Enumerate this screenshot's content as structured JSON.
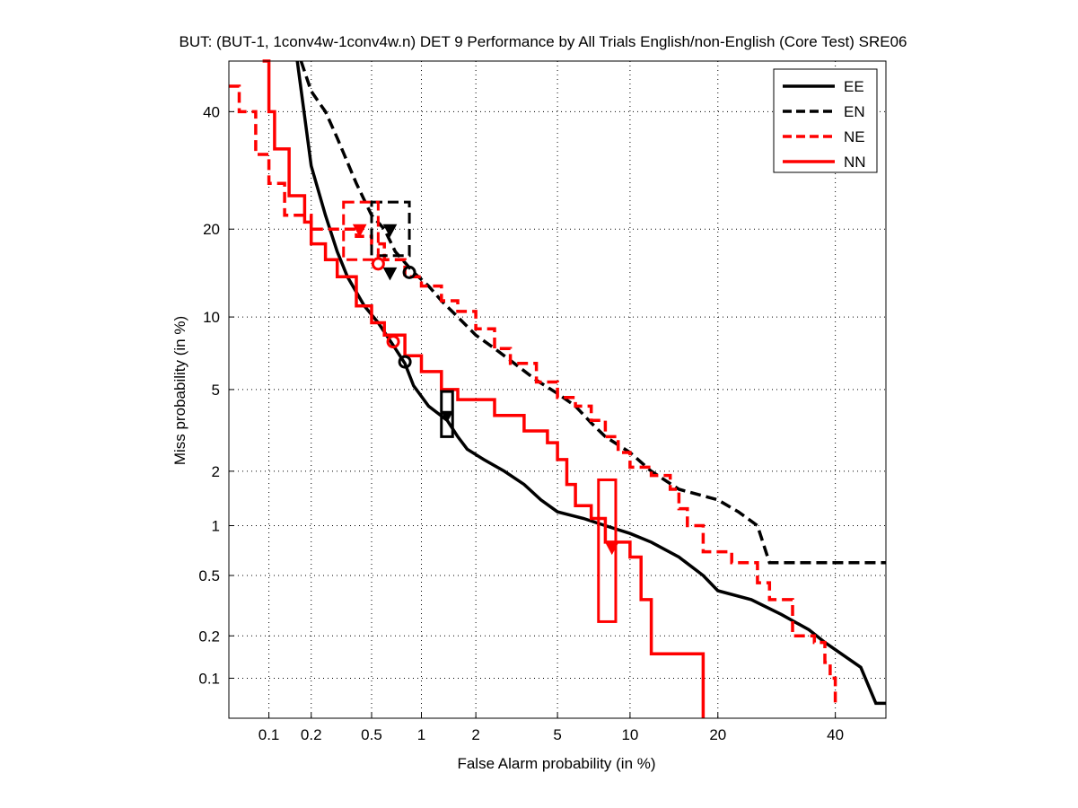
{
  "chart_data": {
    "type": "line",
    "scale": "normal-deviate (DET)",
    "title": "BUT: (BUT-1, 1conv4w-1conv4w.n) DET 9 Performance by All Trials English/non-English (Core Test) SRE06",
    "xlabel": "False Alarm probability (in %)",
    "ylabel": "Miss probability (in %)",
    "xlim": [
      0.05,
      50
    ],
    "ylim": [
      0.05,
      50
    ],
    "xticks": [
      0.1,
      0.2,
      0.5,
      1,
      2,
      5,
      10,
      20,
      40
    ],
    "xtick_labels": [
      "0.1",
      "0.2",
      "0.5",
      "1",
      "2",
      "5",
      "10",
      "20",
      "40"
    ],
    "yticks": [
      0.1,
      0.2,
      0.5,
      1,
      2,
      5,
      10,
      20,
      40
    ],
    "ytick_labels": [
      "0.1",
      "0.2",
      "0.5",
      "1",
      "2",
      "5",
      "10",
      "20",
      "40"
    ],
    "grid": true,
    "legend_position": "top-right",
    "series": [
      {
        "name": "EE",
        "color": "#000000",
        "dash": "solid",
        "shape": "smooth",
        "points": [
          [
            0.16,
            50
          ],
          [
            0.2,
            30
          ],
          [
            0.25,
            22
          ],
          [
            0.3,
            17
          ],
          [
            0.35,
            14
          ],
          [
            0.45,
            11
          ],
          [
            0.55,
            9.5
          ],
          [
            0.7,
            7.5
          ],
          [
            0.8,
            6.5
          ],
          [
            0.9,
            5.2
          ],
          [
            1.1,
            4.2
          ],
          [
            1.4,
            3.6
          ],
          [
            1.6,
            3.0
          ],
          [
            1.8,
            2.6
          ],
          [
            2.2,
            2.3
          ],
          [
            2.8,
            2.0
          ],
          [
            3.5,
            1.7
          ],
          [
            4.2,
            1.4
          ],
          [
            5,
            1.2
          ],
          [
            6.5,
            1.1
          ],
          [
            8,
            1.0
          ],
          [
            10,
            0.9
          ],
          [
            12,
            0.8
          ],
          [
            15,
            0.65
          ],
          [
            18,
            0.5
          ],
          [
            20,
            0.4
          ],
          [
            25,
            0.35
          ],
          [
            30,
            0.28
          ],
          [
            35,
            0.22
          ],
          [
            38,
            0.18
          ],
          [
            45,
            0.12
          ],
          [
            48,
            0.065
          ],
          [
            50,
            0.065
          ]
        ],
        "min_dcf": {
          "fa": 0.8,
          "miss": 6.6
        },
        "act_dcf": {
          "fa": 0.65,
          "miss": 14.5
        }
      },
      {
        "name": "EN",
        "color": "#000000",
        "dash": "dashed",
        "shape": "smooth",
        "points": [
          [
            0.17,
            50
          ],
          [
            0.2,
            44
          ],
          [
            0.25,
            40
          ],
          [
            0.3,
            35
          ],
          [
            0.4,
            27
          ],
          [
            0.5,
            22
          ],
          [
            0.6,
            20
          ],
          [
            0.7,
            17
          ],
          [
            0.9,
            14.5
          ],
          [
            1.1,
            13
          ],
          [
            1.3,
            11.5
          ],
          [
            1.6,
            10
          ],
          [
            2,
            8.5
          ],
          [
            2.5,
            7.5
          ],
          [
            3,
            6.7
          ],
          [
            4,
            5.5
          ],
          [
            5,
            4.8
          ],
          [
            6,
            4.2
          ],
          [
            7,
            3.5
          ],
          [
            8,
            3.0
          ],
          [
            10,
            2.5
          ],
          [
            12,
            2.0
          ],
          [
            15,
            1.6
          ],
          [
            20,
            1.4
          ],
          [
            23,
            1.2
          ],
          [
            26,
            1.0
          ],
          [
            28,
            0.6
          ],
          [
            50,
            0.6
          ]
        ],
        "min_dcf": {
          "fa": 0.85,
          "miss": 14.5
        },
        "act_dcf": {
          "fa": 0.65,
          "miss": 20
        },
        "confidence_box": {
          "fa": [
            0.5,
            0.85
          ],
          "miss": [
            16.5,
            24
          ]
        }
      },
      {
        "name": "NE",
        "color": "#ff0000",
        "dash": "dashed",
        "shape": "stairs",
        "points": [
          [
            0.05,
            45
          ],
          [
            0.06,
            40
          ],
          [
            0.08,
            32
          ],
          [
            0.1,
            27
          ],
          [
            0.13,
            22
          ],
          [
            0.2,
            20
          ],
          [
            0.3,
            20
          ],
          [
            0.4,
            19
          ],
          [
            0.5,
            18
          ],
          [
            0.6,
            16
          ],
          [
            0.8,
            14
          ],
          [
            1,
            13
          ],
          [
            1.3,
            11.5
          ],
          [
            1.6,
            10.5
          ],
          [
            2,
            9
          ],
          [
            2.5,
            7.5
          ],
          [
            3,
            6.5
          ],
          [
            4,
            5.4
          ],
          [
            5,
            4.6
          ],
          [
            6,
            4.2
          ],
          [
            7,
            3.6
          ],
          [
            8,
            3.0
          ],
          [
            9,
            2.5
          ],
          [
            10,
            2.1
          ],
          [
            12,
            1.9
          ],
          [
            14,
            1.6
          ],
          [
            15,
            1.25
          ],
          [
            16,
            1.0
          ],
          [
            18,
            0.7
          ],
          [
            22,
            0.6
          ],
          [
            26,
            0.45
          ],
          [
            28,
            0.35
          ],
          [
            32,
            0.2
          ],
          [
            36,
            0.18
          ],
          [
            38,
            0.13
          ],
          [
            39,
            0.1
          ],
          [
            40,
            0.065
          ]
        ],
        "min_dcf": {
          "fa": 0.55,
          "miss": 15.5
        },
        "act_dcf": {
          "fa": 0.42,
          "miss": 20
        },
        "confidence_box": {
          "fa": [
            0.33,
            0.55
          ],
          "miss": [
            16,
            24
          ]
        }
      },
      {
        "name": "NN",
        "color": "#ff0000",
        "dash": "solid",
        "shape": "stairs",
        "points": [
          [
            0.09,
            50
          ],
          [
            0.1,
            40
          ],
          [
            0.11,
            33
          ],
          [
            0.14,
            25
          ],
          [
            0.18,
            21
          ],
          [
            0.2,
            18
          ],
          [
            0.25,
            16
          ],
          [
            0.3,
            14
          ],
          [
            0.4,
            11
          ],
          [
            0.5,
            9.5
          ],
          [
            0.6,
            8.5
          ],
          [
            0.8,
            7
          ],
          [
            1,
            6
          ],
          [
            1.3,
            5
          ],
          [
            1.6,
            4.5
          ],
          [
            2.5,
            3.8
          ],
          [
            3.5,
            3.2
          ],
          [
            4.5,
            2.8
          ],
          [
            5,
            2.3
          ],
          [
            5.5,
            1.7
          ],
          [
            6,
            1.3
          ],
          [
            7,
            1.1
          ],
          [
            8,
            0.8
          ],
          [
            10,
            0.65
          ],
          [
            11,
            0.35
          ],
          [
            12,
            0.15
          ],
          [
            18,
            0.15
          ],
          [
            18,
            0.05
          ]
        ],
        "min_dcf": {
          "fa": 0.68,
          "miss": 8.0
        },
        "act_dcf": {
          "fa": 8.5,
          "miss": 0.75
        },
        "confidence_box": {
          "fa": [
            7.5,
            8.8
          ],
          "miss": [
            0.25,
            1.8
          ]
        }
      }
    ],
    "extra_boxes": [
      {
        "series": "EE",
        "color": "#000000",
        "fa": [
          1.3,
          1.5
        ],
        "miss": [
          3.0,
          4.9
        ],
        "marker": {
          "fa": 1.4,
          "miss": 3.8
        }
      }
    ]
  }
}
